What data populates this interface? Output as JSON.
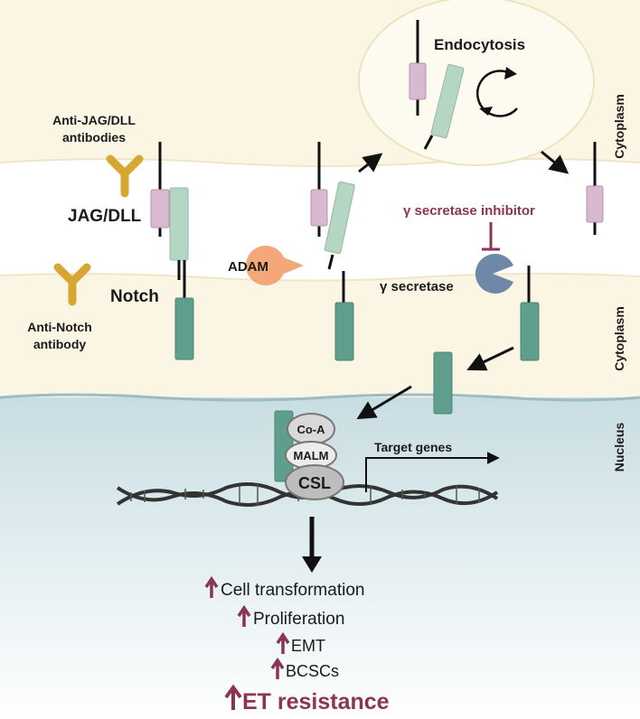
{
  "labels": {
    "endocytosis": "Endocytosis",
    "cytoplasm_top": "Cytoplasm",
    "cytoplasm_mid": "Cytoplasm",
    "nucleus": "Nucleus",
    "anti_jag_line1": "Anti-JAG/DLL",
    "anti_jag_line2": "antibodies",
    "jag_dll": "JAG/DLL",
    "notch": "Notch",
    "anti_notch_line1": "Anti-Notch",
    "anti_notch_line2": "antibody",
    "adam": "ADAM",
    "gamma_inhibitor": "γ secretase inhibitor",
    "gamma_secretase": "γ secretase",
    "co_a": "Co-A",
    "malm": "MALM",
    "csl": "CSL",
    "target_genes": "Target genes"
  },
  "outcomes": [
    "Cell transformation",
    "Proliferation",
    "EMT",
    "BCSCs",
    "ET resistance"
  ],
  "colors": {
    "cytoplasm_band": "#fbf6e4",
    "nucleus_top": "#c8dde2",
    "jag_pink": "#d9b8d2",
    "notch_ecd": "#b5d6c3",
    "notch_icd": "#5f9e8d",
    "antibody": "#d6a733",
    "adam": "#f2a878",
    "gamma": "#6f88a8",
    "accent": "#8a3553"
  }
}
